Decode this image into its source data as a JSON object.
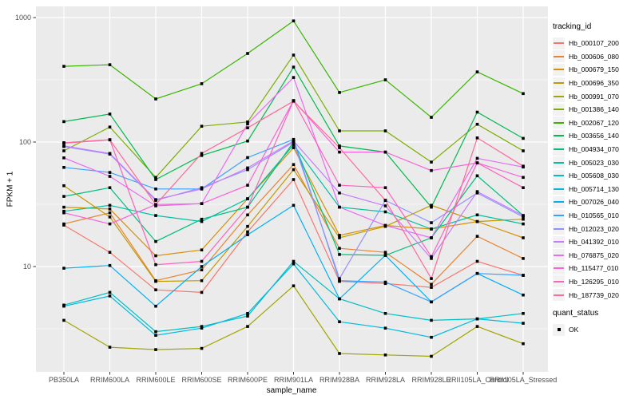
{
  "chart_data": {
    "type": "line",
    "title": "",
    "xlabel": "sample_name",
    "ylabel": "FPKM + 1",
    "y_scale": "log10",
    "y_ticks": [
      10,
      100,
      1000
    ],
    "y_tick_labels": [
      "10",
      "100",
      "1000"
    ],
    "y_minor_ticks": [
      3.1623,
      31.623,
      316.23
    ],
    "ylim": [
      1.6,
      1200
    ],
    "grid": true,
    "legend_position": "right",
    "legend_title": "tracking_id",
    "quant_legend_title": "quant_status",
    "quant_status": "OK",
    "marker": {
      "shape": "square",
      "color": "#000000"
    },
    "panel_bg": "#EBEBEB",
    "grid_color": "#FFFFFF",
    "tick_label_color": "#4D4D4D",
    "categories": [
      "PB350LA",
      "RRIM600LA",
      "RRIM600LE",
      "RRIM600SE",
      "RRIM600PE",
      "RRIM901LA",
      "RRIM928BA",
      "RRIM928LA",
      "RRIM928LE",
      "RRII105LA_Control",
      "RRII105LA_Stressed"
    ],
    "series": [
      {
        "name": "Hb_000107_200",
        "color": "#F8766D",
        "values": [
          21.5,
          13,
          6.5,
          6.2,
          19,
          50,
          7.6,
          7.3,
          6.8,
          11,
          8.5
        ]
      },
      {
        "name": "Hb_000606_080",
        "color": "#EA8331",
        "values": [
          22,
          27,
          7.7,
          9.4,
          26,
          66,
          14,
          13,
          7.2,
          17.5,
          11.6
        ]
      },
      {
        "name": "Hb_000679_150",
        "color": "#D89000",
        "values": [
          30,
          29,
          12.2,
          13.6,
          35,
          90,
          17.8,
          21.4,
          20,
          23,
          17
        ]
      },
      {
        "name": "Hb_000696_350",
        "color": "#C09B00",
        "values": [
          44.6,
          25,
          7.6,
          7.7,
          21,
          60,
          17,
          21,
          31,
          23,
          24
        ]
      },
      {
        "name": "Hb_000991_070",
        "color": "#A3A500",
        "values": [
          3.7,
          2.25,
          2.15,
          2.2,
          3.3,
          7,
          2.0,
          1.95,
          1.9,
          3.3,
          2.4
        ]
      },
      {
        "name": "Hb_001386_140",
        "color": "#7CAE00",
        "values": [
          85,
          132,
          52,
          134,
          145,
          500,
          123,
          123,
          69,
          139,
          85
        ]
      },
      {
        "name": "Hb_002067_120",
        "color": "#39B600",
        "values": [
          406,
          418,
          222,
          294,
          515,
          940,
          250,
          316,
          158,
          366,
          245
        ]
      },
      {
        "name": "Hb_003656_140",
        "color": "#00BB4E",
        "values": [
          146,
          168,
          50,
          78,
          102,
          400,
          93,
          83,
          30,
          174,
          107
        ]
      },
      {
        "name": "Hb_004934_070",
        "color": "#00BF7D",
        "values": [
          36.6,
          43,
          15.9,
          24,
          30,
          100,
          12.5,
          12.3,
          17,
          53.6,
          25.7
        ]
      },
      {
        "name": "Hb_005023_030",
        "color": "#00C1A3",
        "values": [
          27.8,
          31,
          25.7,
          23,
          35,
          95,
          30,
          27.5,
          20,
          26,
          22
        ]
      },
      {
        "name": "Hb_005608_030",
        "color": "#00BFC4",
        "values": [
          4.9,
          6.2,
          3.0,
          3.3,
          4.0,
          11,
          5.5,
          4.2,
          3.7,
          3.8,
          4.2
        ]
      },
      {
        "name": "Hb_005714_130",
        "color": "#00BAE0",
        "values": [
          4.8,
          5.8,
          2.8,
          3.2,
          4.2,
          10.5,
          3.6,
          3.2,
          2.7,
          3.8,
          3.5
        ]
      },
      {
        "name": "Hb_007026_040",
        "color": "#00B0F6",
        "values": [
          9.7,
          10.2,
          4.8,
          10,
          18,
          31,
          5.5,
          12.3,
          5.2,
          8.8,
          5.9
        ]
      },
      {
        "name": "Hb_010565_010",
        "color": "#35A2FF",
        "values": [
          62.5,
          57,
          42,
          42,
          75,
          105,
          7.7,
          7.5,
          5.2,
          8.8,
          8.5
        ]
      },
      {
        "name": "Hb_012023_020",
        "color": "#9590FF",
        "values": [
          92,
          80,
          34,
          43,
          60,
          100,
          8,
          34,
          22.5,
          39,
          25
        ]
      },
      {
        "name": "Hb_041392_010",
        "color": "#C77CFF",
        "values": [
          93,
          81,
          34.5,
          42,
          62,
          102,
          39,
          30.7,
          11.6,
          40,
          25.7
        ]
      },
      {
        "name": "Hb_076875_020",
        "color": "#E76BF3",
        "values": [
          74.7,
          53,
          30.7,
          32,
          140,
          330,
          30,
          21.4,
          17,
          74,
          63
        ]
      },
      {
        "name": "Hb_115477_010",
        "color": "#FA62DB",
        "values": [
          27,
          22,
          31.5,
          32,
          45,
          215,
          83,
          83,
          59,
          68,
          52
        ]
      },
      {
        "name": "Hb_126295_010",
        "color": "#FF62BC",
        "values": [
          98.8,
          104.5,
          10.35,
          11,
          30,
          215,
          45,
          43,
          12,
          68,
          43
        ]
      },
      {
        "name": "Hb_187739_020",
        "color": "#FF6A98",
        "values": [
          98,
          104,
          31.5,
          81,
          130,
          213,
          90,
          34,
          8,
          108,
          64
        ]
      }
    ]
  }
}
